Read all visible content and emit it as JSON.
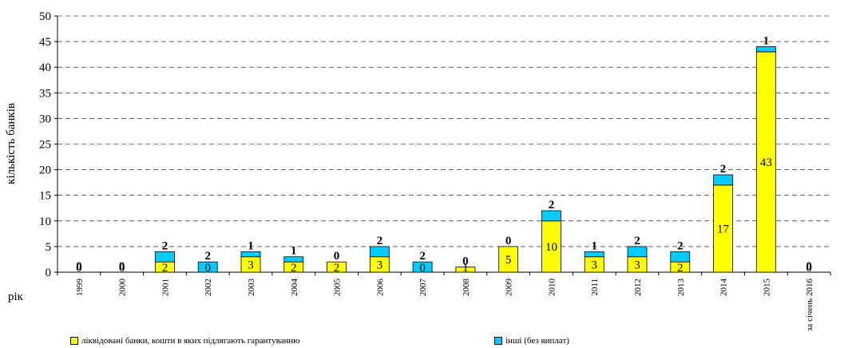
{
  "chart_data": {
    "type": "bar",
    "stacked": true,
    "title": "",
    "ylabel": "кількість банків",
    "xlabel": "рік",
    "ylim": [
      0,
      50
    ],
    "yticks": [
      0,
      5,
      10,
      15,
      20,
      25,
      30,
      35,
      40,
      45,
      50
    ],
    "grid": true,
    "legend_position": "bottom",
    "categories": [
      "1999",
      "2000",
      "2001",
      "2002",
      "2003",
      "2004",
      "2005",
      "2006",
      "2007",
      "2008",
      "2009",
      "2010",
      "2011",
      "2012",
      "2013",
      "2014",
      "2015",
      "за січень 2016"
    ],
    "series": [
      {
        "name": "ліквідовані банки, кошти в яких підлягають гарантуванню",
        "color": "#ffff00",
        "values": [
          0,
          0,
          2,
          0,
          3,
          2,
          2,
          3,
          0,
          1,
          5,
          10,
          3,
          3,
          2,
          17,
          43,
          0
        ]
      },
      {
        "name": "інші (без виплат)",
        "color": "#00ccff",
        "values": [
          0,
          0,
          2,
          2,
          1,
          1,
          0,
          2,
          2,
          0,
          0,
          2,
          1,
          2,
          2,
          2,
          1,
          0
        ]
      }
    ]
  }
}
